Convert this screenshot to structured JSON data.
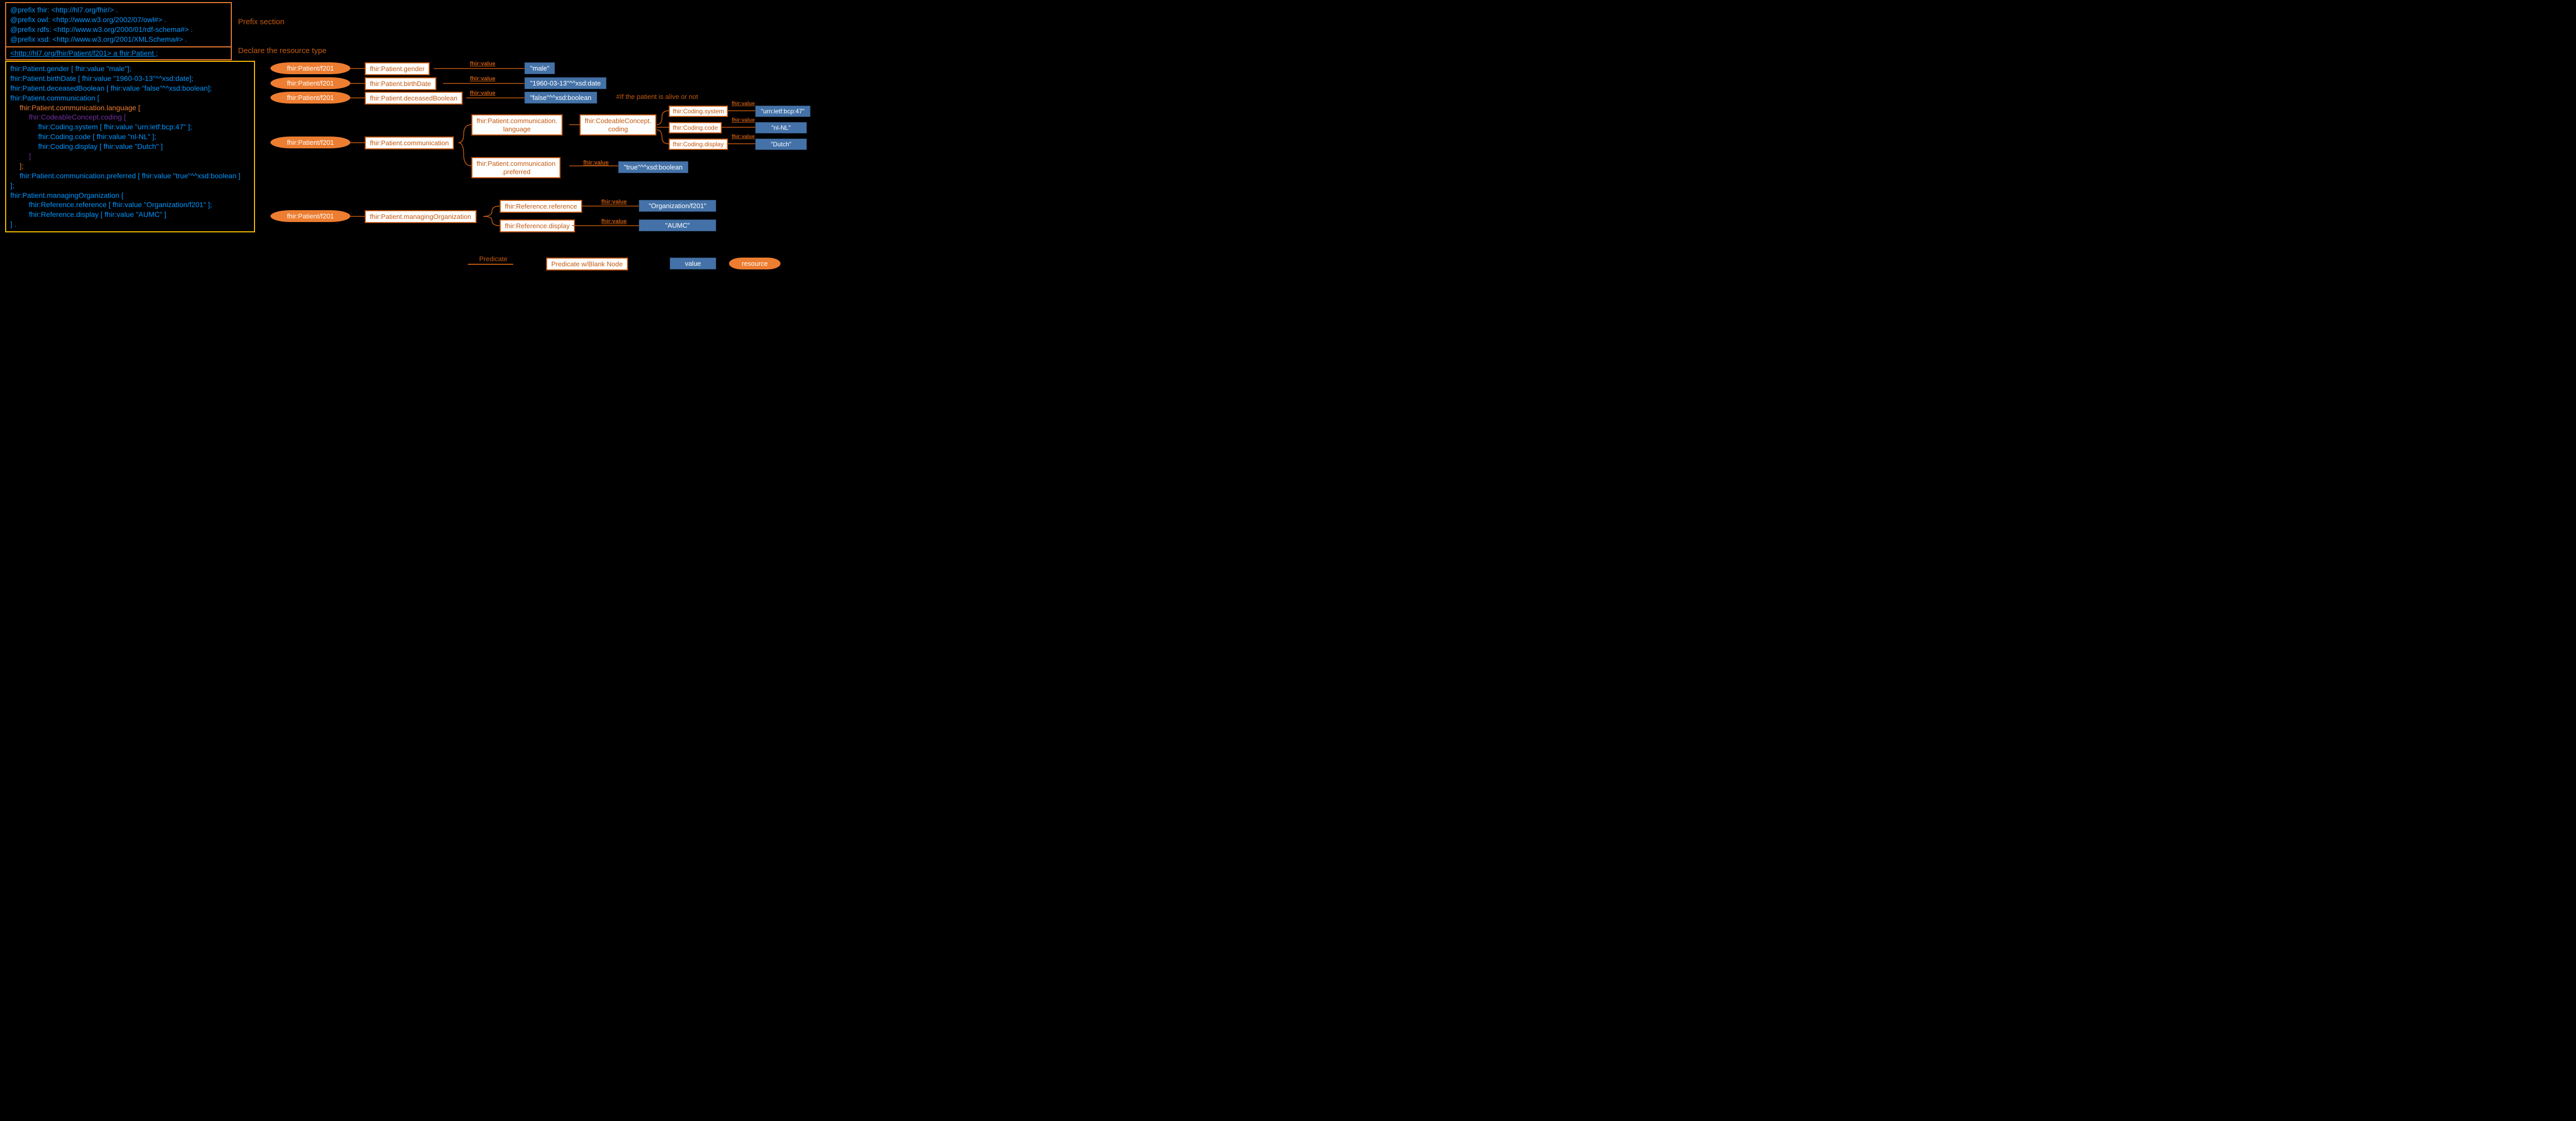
{
  "colors": {
    "bg": "#000000",
    "orange": "#ed7d31",
    "darkOrange": "#c55a11",
    "blue": "#0070c0",
    "turtleBlue": "#0096ff",
    "box1Border": "#ed7d31",
    "box2Border": "#ed7d31",
    "box3Border": "#ffc000",
    "valueBg": "#4472a8",
    "white": "#ffffff",
    "purple": "#7030a0"
  },
  "labels": {
    "prefixSection": "Prefix section",
    "declareResource": "Declare the resource type",
    "comment": "#If the patient is alive or not",
    "legendPredicate": "Predicate",
    "legendPredicateBlank": "Predicate w/Blank Node",
    "legendValue": "value",
    "legendResource": "resource"
  },
  "prefixLines": [
    "@prefix fhir: <http://hl7.org/fhir/> .",
    "@prefix owl: <http://www.w3.org/2002/07/owl#> .",
    "@prefix rdfs: <http://www.w3.org/2000/01/rdf-schema#> .",
    "@prefix xsd: <http://www.w3.org/2001/XMLSchema#> ."
  ],
  "declareLine": "<http://hl7.org/fhir/Patient/f201> a fhir:Patient ;",
  "bodyLines": [
    {
      "i": 0,
      "t": "fhir:Patient.gender [ fhir:value \"male\"];",
      "c": "#0096ff"
    },
    {
      "i": 0,
      "t": "fhir:Patient.birthDate [ fhir:value \"1960-03-13\"^^xsd:date];",
      "c": "#0096ff"
    },
    {
      "i": 0,
      "t": "fhir:Patient.deceasedBoolean [ fhir:value \"false\"^^xsd:boolean];",
      "c": "#0096ff"
    },
    {
      "i": 0,
      "t": "fhir:Patient.communication [",
      "c": "#0096ff"
    },
    {
      "i": 1,
      "t": "fhir:Patient.communication.language [",
      "c": "#ed7d31"
    },
    {
      "i": 2,
      "t": "fhir:CodeableConcept.coding [",
      "c": "#7030a0"
    },
    {
      "i": 3,
      "t": "fhir:Coding.system [ fhir:value \"urn:ietf:bcp:47\" ];",
      "c": "#0096ff"
    },
    {
      "i": 3,
      "t": "fhir:Coding.code [ fhir:value \"nl-NL\" ];",
      "c": "#0096ff"
    },
    {
      "i": 3,
      "t": "fhir:Coding.display [ fhir:value \"Dutch\" ]",
      "c": "#0096ff"
    },
    {
      "i": 2,
      "t": "]",
      "c": "#7030a0"
    },
    {
      "i": 1,
      "t": "];",
      "c": "#ed7d31"
    },
    {
      "i": 1,
      "t": "fhir:Patient.communication.preferred [ fhir:value \"true\"^^xsd:boolean ]",
      "c": "#0096ff"
    },
    {
      "i": 0,
      "t": "];",
      "c": "#0096ff"
    },
    {
      "i": 0,
      "t": "fhir:Patient.managingOrganization [",
      "c": "#0096ff"
    },
    {
      "i": 2,
      "t": "fhir:Reference.reference [ fhir:value \"Organization/f201\" ];",
      "c": "#0096ff"
    },
    {
      "i": 2,
      "t": "fhir:Reference.display [ fhir:value \"AUMC\" ]",
      "c": "#0096ff"
    },
    {
      "i": 0,
      "t": "] .",
      "c": "#0096ff"
    }
  ],
  "pills": {
    "p1": "fhir:Patient/f201",
    "p2": "fhir:Patient/f201",
    "p3": "fhir:Patient/f201",
    "p4": "fhir:Patient/f201",
    "p5": "fhir:Patient/f201"
  },
  "preds": {
    "gender": "fhir:Patient.gender",
    "birthDate": "fhir:Patient.birthDate",
    "deceased": "fhir:Patient.deceasedBoolean",
    "comm": "fhir:Patient.communication",
    "commLang": "fhir:Patient.communication.\nlanguage",
    "commPref": "fhir:Patient.communication\n.preferred",
    "ccoding": "fhir:CodeableConcept.\ncoding",
    "csystem": "fhir:Coding.system",
    "ccode": "fhir:Coding.code",
    "cdisplay": "fhir:Coding.display",
    "morg": "fhir:Patient.managingOrganization",
    "refref": "fhir:Reference.reference",
    "refdisp": "fhir:Reference.display"
  },
  "vals": {
    "male": "\"male\"",
    "bdate": "\"1960-03-13\"^^xsd:date",
    "dec": "\"false\"^^xsd:boolean",
    "urn": "\"urn:ietf:bcp:47\"",
    "nlnl": "\"nl-NL\"",
    "dutch": "\"Dutch\"",
    "true": "\"true\"^^xsd:boolean",
    "org": "\"Organization/f201\"",
    "aumc": "\"AUMC\""
  },
  "edgeLabel": "fhir:value"
}
